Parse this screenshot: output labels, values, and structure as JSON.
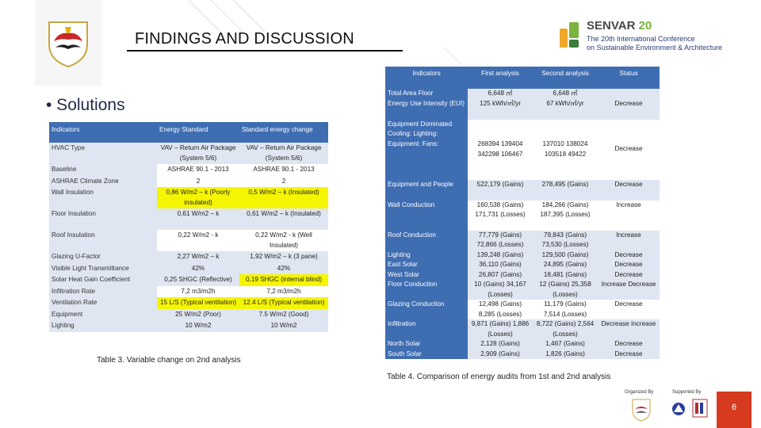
{
  "header": {
    "title": "FINDINGS AND DISCUSSION"
  },
  "conference": {
    "brand_prefix": "SENVAR",
    "brand_number": "20",
    "line1": "The 20th International Conference",
    "line2": "on Sustainable Environment & Architecture",
    "accent_color": "#7ab33e",
    "text_color": "#2a3d7a"
  },
  "bullet": "• Solutions",
  "table3": {
    "headers": [
      "Indicators",
      "Energy Standard",
      "Standard energy change"
    ],
    "rows": [
      {
        "indicator": "HVAC Type",
        "standard": "VAV – Return Air Package (System 5/6)",
        "change": "VAV – Return Air Package (System 5/6)"
      },
      {
        "indicator": "Baseline",
        "standard": "ASHRAE 90.1 - 2013",
        "change": "ASHRAE 90.1 - 2013"
      },
      {
        "indicator": "ASHRAE Climate Zone",
        "standard": "2",
        "change": "2"
      },
      {
        "indicator": "Wall Insulation",
        "standard": "0,86 W/m2 – k (Poorly insulated)",
        "change": "0,5 W/m2 – k (Insulated)"
      },
      {
        "indicator": "Floor Insulation",
        "standard": "0,61 W/m2 – k",
        "change": "0,61 W/m2 – k (Insulated)"
      },
      {
        "indicator": "Roof Insulation",
        "standard": "0,22 W/m2 - k",
        "change": "0,22 W/m2 - k (Well Insulated)"
      },
      {
        "indicator": "Glazing U-Factor",
        "standard": "2,27 W/m2 – k",
        "change": "1,92 W/m2 – k (3 pane)"
      },
      {
        "indicator": "Visible Light Transmittance",
        "standard": "42%",
        "change": "42%"
      },
      {
        "indicator": "Solar Heat Gain Coefficient",
        "standard": "0,25 SHGC (Reflective)",
        "change": "0,19 SHGC (internal blind)"
      },
      {
        "indicator": "Infiltration Rate",
        "standard": "7,2 m3/m2h",
        "change": "7,2 m3/m2h"
      },
      {
        "indicator": "Ventilation Rate",
        "standard": "15 L/S (Typical ventilation)",
        "change": "12.4 L/S (Typical ventilation)"
      },
      {
        "indicator": "Equipment",
        "standard": "25 W/m2 (Poor)",
        "change": "7.5 W/m2 (Good)"
      },
      {
        "indicator": "Lighting",
        "standard": "10 W/m2",
        "change": "10 W/m2"
      }
    ],
    "caption": "Table 3. Variable change on 2nd analysis",
    "highlight_color": "#f5f500"
  },
  "table4": {
    "headers": [
      "Indicators",
      "First analysis",
      "Second analysis",
      "Status"
    ],
    "rows": [
      {
        "indicator": "Total Area Floor",
        "first": "6,648 ㎡",
        "second": "6,648 ㎡",
        "status": ""
      },
      {
        "indicator": "Energy Use Intensity (EUI)",
        "first": "125 kWh/㎡/yr",
        "second": "67 kWh/㎡/yr",
        "status": "Decrease"
      },
      {
        "indicator": "Equipment Dominated Cooling: Lighting: Equipment: Fans:",
        "first": "268394 139404 342298 106467",
        "second": "137010 138024 103518 49422",
        "status": "Decrease"
      },
      {
        "indicator": "Equipment and People",
        "first": "522,179 (Gains)",
        "second": "278,495 (Gains)",
        "status": "Decrease"
      },
      {
        "indicator": "Wall Conduction",
        "first": "160,538 (Gains) 171,731 (Losses)",
        "second": "184,266 (Gains) 187,395 (Losses)",
        "status": "Increase"
      },
      {
        "indicator": "Roof Conduction",
        "first": "77,779 (Gains) 72,866 (Losses)",
        "second": "79,843 (Gains) 73,530 (Losses)",
        "status": "Increase"
      },
      {
        "indicator": "Lighting",
        "first": "139,248 (Gains)",
        "second": "129,500 (Gains)",
        "status": "Decrease"
      },
      {
        "indicator": "East Solar",
        "first": "36,110 (Gains)",
        "second": "24,895 (Gains)",
        "status": "Decrease"
      },
      {
        "indicator": "West Solar",
        "first": "26,807 (Gains)",
        "second": "18,481 (Gains)",
        "status": "Decrease"
      },
      {
        "indicator": "Floor Conduction",
        "first": "10 (Gains) 34,167 (Losses)",
        "second": "12 (Gains) 25,358 (Losses)",
        "status": "Increase Decrease"
      },
      {
        "indicator": "Glazing Conduction",
        "first": "12,498 (Gains) 8,285 (Losses)",
        "second": "11,179 (Gains) 7,514 (Losses)",
        "status": "Decrease"
      },
      {
        "indicator": "Infiltration",
        "first": "9,871 (Gains) 1,886 (Losses)",
        "second": "8,722 (Gains) 2,564 (Losses)",
        "status": "Decrease Increase"
      },
      {
        "indicator": "North Solar",
        "first": "2,128 (Gains)",
        "second": "1,467 (Gains)",
        "status": "Decrease"
      },
      {
        "indicator": "South Solar",
        "first": "2,909 (Gains)",
        "second": "1,826 (Gains)",
        "status": "Decrease"
      }
    ],
    "caption": "Table 4. Comparison of energy audits from 1st and 2nd analysis"
  },
  "footer": {
    "organized_by": "Organized By",
    "supported_by": "Supported By",
    "page_number": "6",
    "page_color": "#d63a1f"
  },
  "colors": {
    "header_blue": "#3f6db2",
    "band_light": "#dfe6f1"
  }
}
